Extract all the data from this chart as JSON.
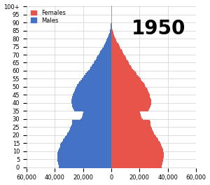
{
  "title": "1950",
  "female_color": "#e8534a",
  "male_color": "#4472c4",
  "background_color": "#ffffff",
  "grid_color": "#d0d0d0",
  "xlim": [
    -60000,
    60000
  ],
  "xticks": [
    -60000,
    -40000,
    -20000,
    0,
    20000,
    40000,
    60000
  ],
  "xticklabels": [
    "60,000",
    "40,000",
    "20,000",
    "0",
    "20,000",
    "40,000",
    "60,000"
  ],
  "ages": [
    0,
    1,
    2,
    3,
    4,
    5,
    6,
    7,
    8,
    9,
    10,
    11,
    12,
    13,
    14,
    15,
    16,
    17,
    18,
    19,
    20,
    21,
    22,
    23,
    24,
    25,
    26,
    27,
    28,
    29,
    30,
    31,
    32,
    33,
    34,
    35,
    36,
    37,
    38,
    39,
    40,
    41,
    42,
    43,
    44,
    45,
    46,
    47,
    48,
    49,
    50,
    51,
    52,
    53,
    54,
    55,
    56,
    57,
    58,
    59,
    60,
    61,
    62,
    63,
    64,
    65,
    66,
    67,
    68,
    69,
    70,
    71,
    72,
    73,
    74,
    75,
    76,
    77,
    78,
    79,
    80,
    81,
    82,
    83,
    84,
    85,
    86,
    87,
    88,
    89,
    90,
    91,
    92,
    93,
    94,
    95,
    96,
    97,
    98,
    99,
    100
  ],
  "males": [
    37000,
    37200,
    37500,
    37700,
    37900,
    38100,
    38200,
    38200,
    38100,
    37900,
    37600,
    37200,
    36800,
    36400,
    36000,
    35500,
    34900,
    34200,
    33400,
    32600,
    31800,
    31100,
    30300,
    29600,
    29000,
    28500,
    28100,
    27800,
    27600,
    27500,
    22000,
    21000,
    20500,
    20200,
    20000,
    26000,
    26500,
    27000,
    27500,
    27800,
    28000,
    28100,
    28000,
    27800,
    27500,
    27200,
    26800,
    26400,
    25900,
    25400,
    24800,
    24100,
    23400,
    22600,
    21800,
    20900,
    20000,
    19100,
    18200,
    17300,
    16400,
    15500,
    14700,
    13900,
    13200,
    12500,
    11800,
    11100,
    10500,
    9800,
    9100,
    8400,
    7700,
    7000,
    6300,
    5600,
    5000,
    4400,
    3800,
    3300,
    2800,
    2300,
    1900,
    1500,
    1200,
    900,
    700,
    500,
    350,
    230,
    150,
    90,
    55,
    30,
    16,
    8,
    4,
    2,
    1,
    0,
    0
  ],
  "females": [
    35500,
    35700,
    36000,
    36200,
    36500,
    36800,
    37000,
    37100,
    37100,
    37000,
    36800,
    36500,
    36100,
    35700,
    35300,
    34800,
    34200,
    33500,
    32700,
    31900,
    31100,
    30400,
    29700,
    29100,
    28600,
    28200,
    27900,
    27700,
    27600,
    27500,
    22500,
    21500,
    21000,
    20700,
    20500,
    26500,
    27000,
    27500,
    28000,
    28300,
    28400,
    28300,
    28100,
    27800,
    27400,
    27100,
    26700,
    26200,
    25700,
    25100,
    24500,
    23800,
    23100,
    22300,
    21500,
    20700,
    19800,
    18900,
    18100,
    17200,
    16300,
    15400,
    14600,
    13800,
    13100,
    12400,
    11700,
    11100,
    10500,
    9800,
    9200,
    8600,
    8000,
    7400,
    6700,
    6000,
    5400,
    4800,
    4200,
    3600,
    3100,
    2600,
    2100,
    1700,
    1300,
    1000,
    750,
    550,
    380,
    260,
    170,
    105,
    65,
    38,
    22,
    12,
    6,
    3,
    1,
    0,
    0
  ]
}
